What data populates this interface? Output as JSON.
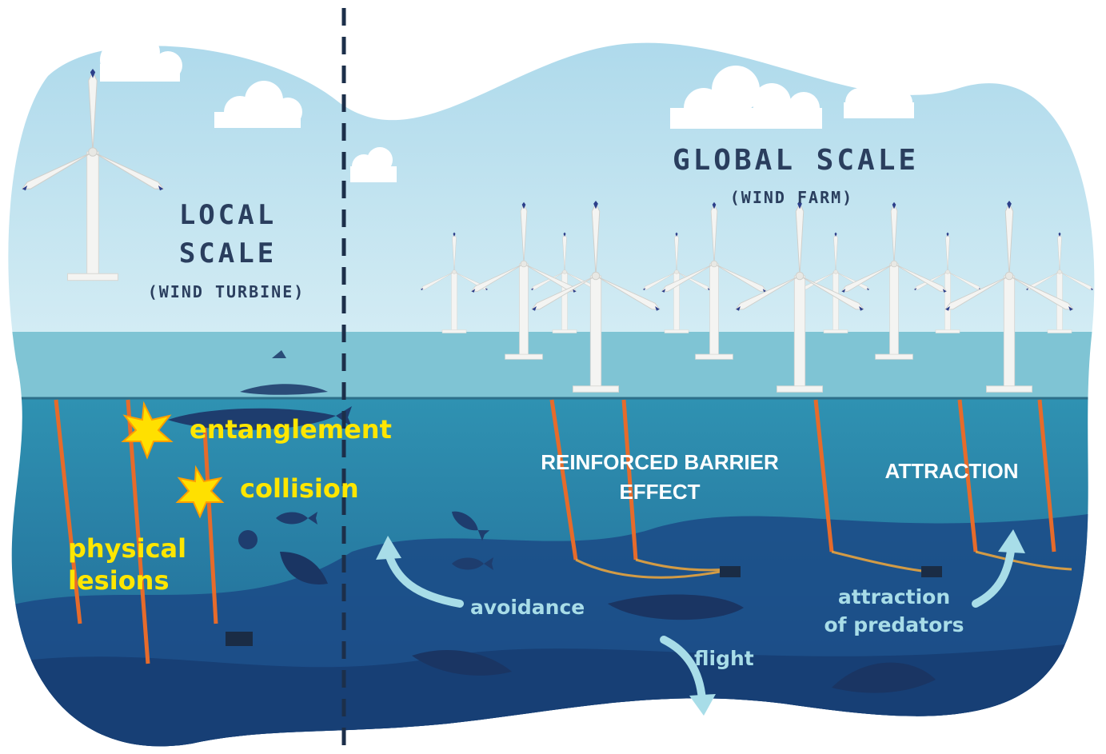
{
  "local": {
    "title_line1": "LOCAL",
    "title_line2": "SCALE",
    "subtitle": "(WIND TURBINE)"
  },
  "global": {
    "title": "GLOBAL SCALE",
    "subtitle": "(WIND FARM)"
  },
  "local_impacts": {
    "entanglement": "entanglement",
    "collision": "collision",
    "physical_line1": "physical",
    "physical_line2": "lesions"
  },
  "global_effects": {
    "barrier_line1": "REINFORCED BARRIER",
    "barrier_line2": "EFFECT",
    "attraction": "ATTRACTION"
  },
  "responses": {
    "avoidance": "avoidance",
    "flight": "flight",
    "attraction_pred_line1": "attraction",
    "attraction_pred_line2": "of predators"
  },
  "colors": {
    "sky": "#bfe3f0",
    "sea_surface": "#7ec3d4",
    "water": "#2a88a8",
    "deep_water": "#1d4f86",
    "impact_text": "#ffe600",
    "header_text": "#2a3e5e",
    "cable": "#e86a2a"
  }
}
